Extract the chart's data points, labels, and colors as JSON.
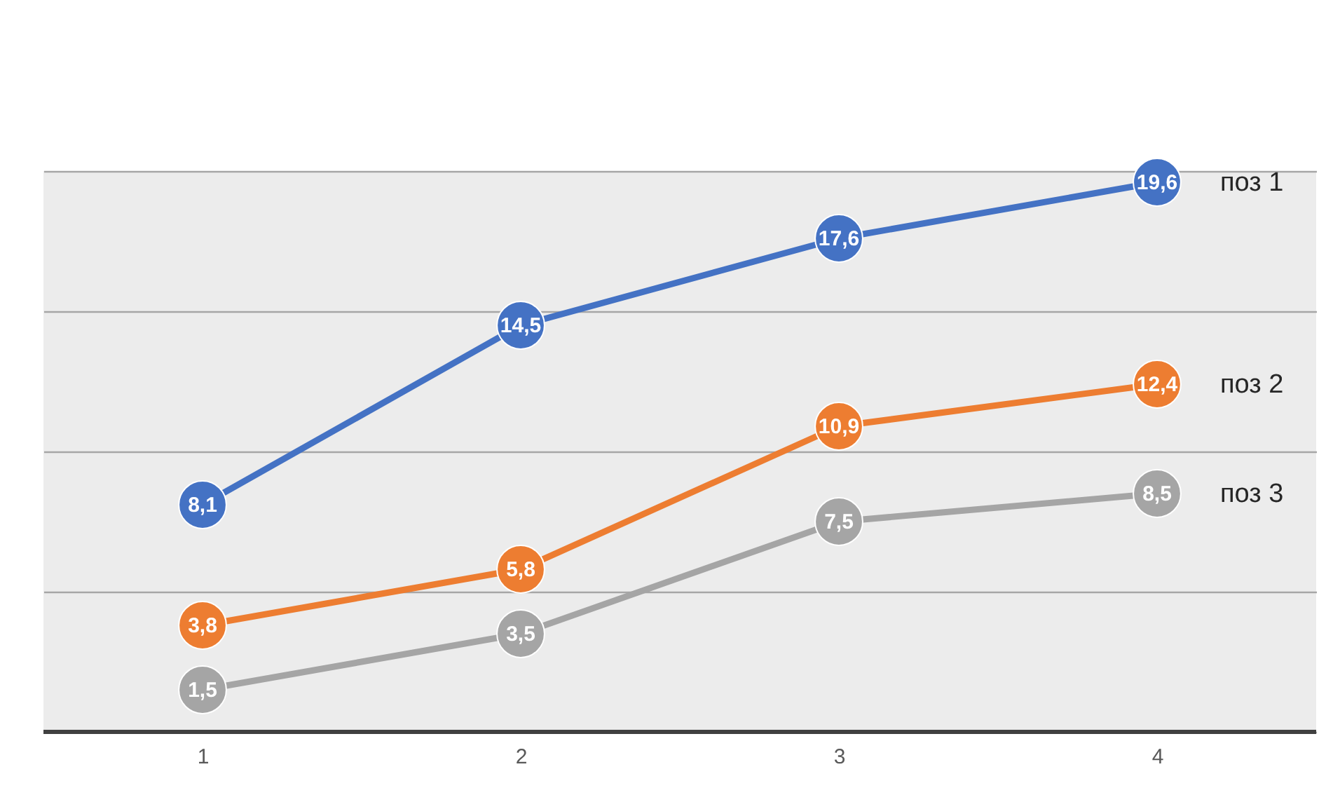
{
  "chart_data": {
    "type": "line",
    "categories": [
      "1",
      "2",
      "3",
      "4"
    ],
    "series": [
      {
        "name": "поз 1",
        "color": "#4472c4",
        "values": [
          8.1,
          14.5,
          17.6,
          19.6
        ],
        "value_labels": [
          "8,1",
          "14,5",
          "17,6",
          "19,6"
        ]
      },
      {
        "name": "поз 2",
        "color": "#ed7d31",
        "values": [
          3.8,
          5.8,
          10.9,
          12.4
        ],
        "value_labels": [
          "3,8",
          "5,8",
          "10,9",
          "12,4"
        ]
      },
      {
        "name": "поз 3",
        "color": "#a5a5a5",
        "values": [
          1.5,
          3.5,
          7.5,
          8.5
        ],
        "value_labels": [
          "1,5",
          "3,5",
          "7,5",
          "8,5"
        ]
      }
    ],
    "grid": "y",
    "tick_labels": "x",
    "marker": "circle",
    "line_style": "solid",
    "legend": "right"
  }
}
